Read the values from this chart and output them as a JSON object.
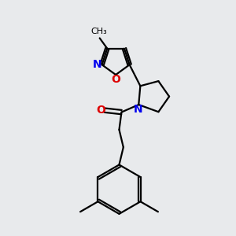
{
  "bg_color": "#e8eaec",
  "bond_color": "#000000",
  "n_color": "#0000ee",
  "o_color": "#dd0000",
  "line_width": 1.6,
  "font_size": 8.5,
  "xlim": [
    0,
    10
  ],
  "ylim": [
    0,
    10
  ]
}
